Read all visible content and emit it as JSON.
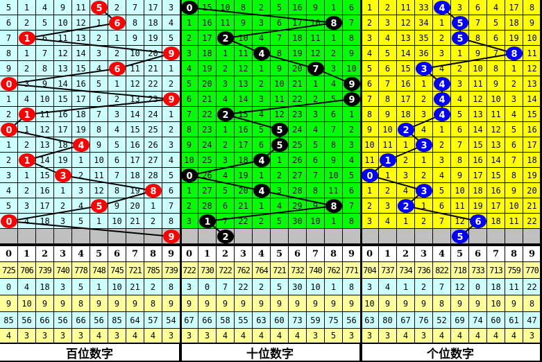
{
  "chart_data": {
    "type": "table",
    "column_headers": [
      "0",
      "1",
      "2",
      "3",
      "4",
      "5",
      "6",
      "7",
      "8",
      "9"
    ],
    "panels": [
      {
        "label": "百位数字",
        "bg_color": "#ccffff",
        "ball_color": "#ff0000",
        "hits": [
          5,
          6,
          1,
          9,
          6,
          0,
          9,
          1,
          0,
          4,
          1,
          3,
          8,
          5,
          0
        ],
        "next_hit": 9,
        "rows": [
          [
            5,
            1,
            4,
            9,
            11,
            5,
            2,
            7,
            17,
            3
          ],
          [
            6,
            2,
            5,
            10,
            12,
            1,
            6,
            8,
            18,
            4
          ],
          [
            7,
            1,
            6,
            11,
            13,
            2,
            1,
            9,
            19,
            5
          ],
          [
            8,
            1,
            7,
            12,
            14,
            3,
            2,
            10,
            20,
            9
          ],
          [
            9,
            2,
            8,
            13,
            15,
            4,
            6,
            11,
            21,
            1
          ],
          [
            0,
            3,
            9,
            14,
            16,
            5,
            1,
            12,
            22,
            2
          ],
          [
            1,
            4,
            10,
            15,
            17,
            6,
            2,
            13,
            23,
            9
          ],
          [
            2,
            1,
            11,
            16,
            18,
            7,
            3,
            14,
            24,
            1
          ],
          [
            0,
            1,
            12,
            17,
            19,
            8,
            4,
            15,
            25,
            2
          ],
          [
            1,
            2,
            13,
            18,
            4,
            9,
            5,
            16,
            26,
            3
          ],
          [
            2,
            1,
            14,
            19,
            1,
            10,
            6,
            17,
            27,
            4
          ],
          [
            3,
            1,
            15,
            3,
            2,
            11,
            7,
            18,
            28,
            5
          ],
          [
            4,
            2,
            16,
            1,
            3,
            12,
            8,
            19,
            8,
            6
          ],
          [
            5,
            3,
            17,
            2,
            4,
            5,
            9,
            20,
            1,
            7
          ],
          [
            0,
            4,
            18,
            3,
            5,
            1,
            10,
            21,
            2,
            8
          ]
        ],
        "stats": [
          [
            725,
            706,
            739,
            740,
            778,
            748,
            745,
            721,
            785,
            739
          ],
          [
            0,
            4,
            18,
            3,
            5,
            1,
            10,
            21,
            2,
            8
          ],
          [
            9,
            10,
            9,
            9,
            8,
            9,
            9,
            9,
            8,
            9
          ],
          [
            85,
            56,
            66,
            56,
            66,
            56,
            85,
            64,
            57,
            54
          ],
          [
            4,
            3,
            3,
            3,
            3,
            4,
            3,
            4,
            4,
            3
          ]
        ]
      },
      {
        "label": "十位数字",
        "bg_color": "#00ff00",
        "ball_color": "#000000",
        "hits": [
          0,
          8,
          2,
          4,
          7,
          9,
          9,
          2,
          5,
          5,
          4,
          0,
          4,
          8,
          1
        ],
        "next_hit": 2,
        "rows": [
          [
            0,
            15,
            10,
            8,
            2,
            5,
            16,
            9,
            1,
            6
          ],
          [
            1,
            16,
            11,
            9,
            3,
            6,
            17,
            10,
            8,
            7
          ],
          [
            2,
            17,
            2,
            10,
            4,
            7,
            18,
            11,
            1,
            8
          ],
          [
            3,
            18,
            1,
            11,
            4,
            8,
            19,
            12,
            2,
            9
          ],
          [
            4,
            19,
            2,
            12,
            1,
            9,
            20,
            7,
            3,
            10
          ],
          [
            5,
            20,
            3,
            13,
            2,
            10,
            21,
            1,
            4,
            9
          ],
          [
            6,
            21,
            4,
            14,
            3,
            11,
            22,
            2,
            5,
            9
          ],
          [
            7,
            22,
            2,
            15,
            4,
            12,
            23,
            3,
            6,
            1
          ],
          [
            8,
            23,
            1,
            16,
            5,
            5,
            24,
            4,
            7,
            2
          ],
          [
            9,
            24,
            2,
            17,
            6,
            5,
            25,
            5,
            8,
            3
          ],
          [
            10,
            25,
            3,
            18,
            4,
            1,
            26,
            6,
            9,
            4
          ],
          [
            0,
            26,
            4,
            19,
            1,
            2,
            27,
            7,
            10,
            5
          ],
          [
            1,
            27,
            5,
            20,
            4,
            3,
            28,
            8,
            11,
            6
          ],
          [
            2,
            28,
            6,
            21,
            1,
            4,
            29,
            9,
            8,
            7
          ],
          [
            3,
            1,
            7,
            22,
            2,
            5,
            30,
            10,
            1,
            8
          ]
        ],
        "stats": [
          [
            722,
            730,
            722,
            762,
            764,
            721,
            732,
            740,
            762,
            771
          ],
          [
            3,
            0,
            7,
            22,
            2,
            5,
            30,
            10,
            1,
            8
          ],
          [
            9,
            9,
            9,
            9,
            9,
            9,
            9,
            9,
            9,
            9
          ],
          [
            67,
            66,
            58,
            55,
            63,
            60,
            73,
            59,
            75,
            56
          ],
          [
            3,
            3,
            4,
            4,
            4,
            4,
            4,
            3,
            5,
            3
          ]
        ]
      },
      {
        "label": "个位数字",
        "bg_color": "#ffff00",
        "ball_color": "#0000ff",
        "hits": [
          4,
          5,
          5,
          8,
          3,
          4,
          4,
          4,
          2,
          3,
          1,
          0,
          3,
          2,
          6
        ],
        "next_hit": 5,
        "rows": [
          [
            1,
            2,
            11,
            33,
            4,
            3,
            6,
            4,
            17,
            8
          ],
          [
            2,
            3,
            12,
            34,
            1,
            5,
            7,
            5,
            18,
            9
          ],
          [
            3,
            4,
            13,
            35,
            2,
            5,
            8,
            6,
            19,
            10
          ],
          [
            4,
            5,
            14,
            36,
            3,
            1,
            9,
            7,
            8,
            11
          ],
          [
            5,
            6,
            15,
            3,
            4,
            2,
            10,
            8,
            1,
            12
          ],
          [
            6,
            7,
            16,
            1,
            4,
            3,
            11,
            9,
            2,
            13
          ],
          [
            7,
            8,
            17,
            2,
            4,
            4,
            12,
            10,
            3,
            14
          ],
          [
            8,
            9,
            18,
            3,
            4,
            5,
            13,
            11,
            4,
            15
          ],
          [
            9,
            10,
            2,
            4,
            1,
            6,
            14,
            12,
            5,
            16
          ],
          [
            10,
            11,
            1,
            3,
            2,
            7,
            15,
            13,
            6,
            17
          ],
          [
            11,
            1,
            2,
            1,
            3,
            8,
            16,
            14,
            7,
            18
          ],
          [
            0,
            1,
            3,
            2,
            4,
            9,
            17,
            15,
            8,
            19
          ],
          [
            1,
            2,
            4,
            3,
            5,
            10,
            18,
            16,
            9,
            20
          ],
          [
            2,
            3,
            2,
            1,
            6,
            11,
            19,
            17,
            10,
            21
          ],
          [
            3,
            4,
            1,
            2,
            7,
            12,
            6,
            18,
            11,
            22
          ]
        ],
        "stats": [
          [
            704,
            737,
            734,
            736,
            822,
            718,
            733,
            713,
            759,
            770
          ],
          [
            3,
            4,
            1,
            2,
            7,
            12,
            0,
            18,
            11,
            22
          ],
          [
            10,
            9,
            9,
            9,
            8,
            9,
            9,
            10,
            9,
            8
          ],
          [
            63,
            80,
            67,
            76,
            52,
            69,
            74,
            60,
            61,
            47
          ],
          [
            3,
            3,
            4,
            3,
            4,
            4,
            4,
            4,
            4,
            3
          ]
        ]
      }
    ],
    "colors": {
      "pending_row": "#c0c0c0",
      "stats_yellow": "#ffff99",
      "stats_cyan": "#ccffff",
      "line": "#000000"
    }
  }
}
